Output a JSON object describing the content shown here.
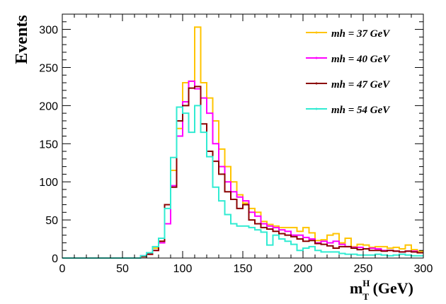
{
  "chart_data": {
    "type": "step-histogram",
    "xlabel_main": "m",
    "xlabel_sub": "T",
    "xlabel_sup": "H",
    "xlabel_unit": " (GeV)",
    "ylabel": "Events",
    "xlim": [
      0,
      300
    ],
    "ylim": [
      0,
      320
    ],
    "bin_width": 5,
    "x_ticks": [
      0,
      50,
      100,
      150,
      200,
      250,
      300
    ],
    "y_ticks": [
      0,
      50,
      100,
      150,
      200,
      250,
      300
    ],
    "grid": false,
    "legend_position": "top-right",
    "series": [
      {
        "name": "mh = 37 GeV",
        "color": "#ffc400",
        "values": [
          0,
          0,
          0,
          0,
          0,
          0,
          0,
          0,
          0,
          0,
          0,
          0,
          0,
          2,
          5,
          13,
          22,
          70,
          115,
          170,
          230,
          232,
          303,
          230,
          210,
          180,
          143,
          120,
          100,
          83,
          72,
          65,
          60,
          48,
          44,
          42,
          40,
          40,
          40,
          35,
          40,
          33,
          23,
          24,
          30,
          32,
          20,
          26,
          15,
          18,
          17,
          14,
          15,
          15,
          13,
          14,
          12,
          17,
          11,
          9
        ]
      },
      {
        "name": "mh = 40 GeV",
        "color": "#ff00ff",
        "values": [
          0,
          0,
          0,
          0,
          0,
          0,
          0,
          0,
          0,
          0,
          0,
          0,
          0,
          3,
          5,
          10,
          20,
          45,
          95,
          160,
          205,
          232,
          222,
          210,
          190,
          150,
          120,
          100,
          87,
          80,
          75,
          60,
          55,
          45,
          42,
          40,
          37,
          35,
          30,
          30,
          27,
          25,
          20,
          22,
          20,
          22,
          18,
          15,
          14,
          14,
          12,
          13,
          12,
          10,
          10,
          9,
          8,
          9,
          9,
          7
        ]
      },
      {
        "name": "mh = 47 GeV",
        "color": "#8b0000",
        "values": [
          0,
          0,
          0,
          0,
          0,
          0,
          0,
          0,
          0,
          0,
          0,
          0,
          0,
          2,
          5,
          10,
          22,
          70,
          93,
          180,
          200,
          223,
          225,
          176,
          140,
          127,
          110,
          87,
          77,
          65,
          70,
          50,
          45,
          40,
          38,
          35,
          32,
          30,
          28,
          25,
          22,
          23,
          19,
          18,
          16,
          13,
          15,
          15,
          13,
          11,
          12,
          10,
          10,
          9,
          10,
          9,
          8,
          9,
          8,
          7
        ]
      },
      {
        "name": "mh = 54 GeV",
        "color": "#30ebd2",
        "values": [
          0,
          0,
          0,
          0,
          0,
          0,
          0,
          0,
          0,
          0,
          0,
          0,
          0,
          3,
          7,
          15,
          26,
          65,
          132,
          198,
          190,
          165,
          200,
          165,
          133,
          93,
          75,
          57,
          45,
          42,
          42,
          40,
          37,
          34,
          17,
          30,
          25,
          22,
          18,
          10,
          13,
          15,
          10,
          8,
          8,
          8,
          6,
          5,
          5,
          4,
          4,
          4,
          5,
          4,
          3,
          4,
          5,
          4,
          3,
          3
        ]
      }
    ]
  }
}
